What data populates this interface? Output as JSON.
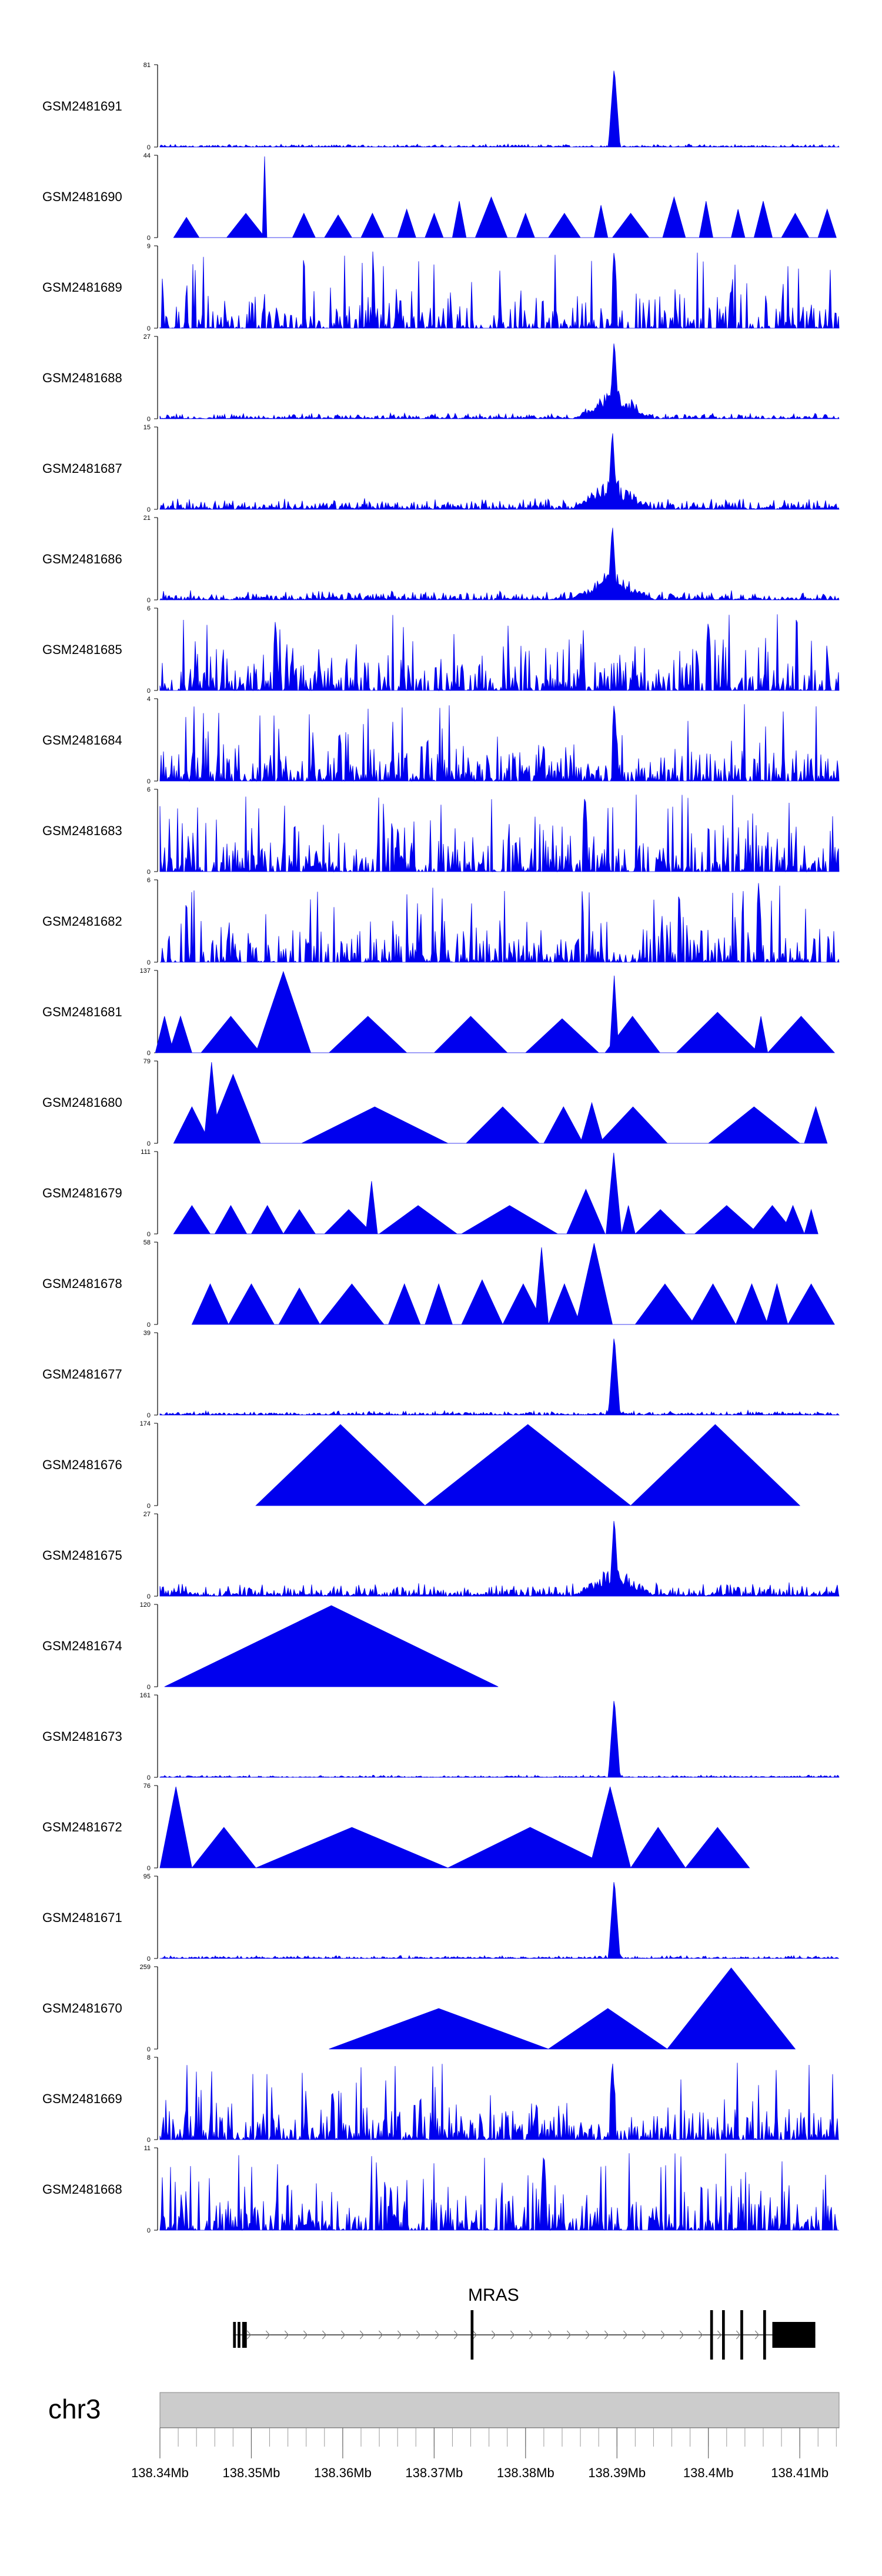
{
  "chart_data": {
    "type": "area",
    "title": "",
    "genomic_range": [
      138.34,
      138.4143
    ],
    "colors": {
      "signal": "#0000ee",
      "gene": "#000000",
      "ideogram": "#cccccc"
    },
    "tracks": [
      {
        "label": "GSM2481691",
        "ymin": "0",
        "ymax": "81",
        "profile": "peak",
        "peak_pos": 138.3897,
        "peak_frac": 1.0,
        "baseline": 0.04
      },
      {
        "label": "GSM2481690",
        "ymin": "0",
        "ymax": "44",
        "profile": "triangles",
        "regions": [
          [
            138.3415,
            138.3443,
            0.25
          ],
          [
            138.3443,
            138.3473,
            0.0
          ],
          [
            138.3473,
            138.3515,
            0.3
          ],
          [
            138.3512,
            138.3517,
            1.0
          ],
          [
            138.3545,
            138.357,
            0.3
          ],
          [
            138.358,
            138.361,
            0.28
          ],
          [
            138.362,
            138.3645,
            0.3
          ],
          [
            138.366,
            138.368,
            0.35
          ],
          [
            138.369,
            138.371,
            0.3
          ],
          [
            138.372,
            138.3735,
            0.45
          ],
          [
            138.3745,
            138.378,
            0.5
          ],
          [
            138.379,
            138.381,
            0.3
          ],
          [
            138.3825,
            138.386,
            0.3
          ],
          [
            138.3875,
            138.389,
            0.4
          ],
          [
            138.3895,
            138.3935,
            0.3
          ],
          [
            138.395,
            138.3975,
            0.5
          ],
          [
            138.399,
            138.4005,
            0.45
          ],
          [
            138.4025,
            138.404,
            0.35
          ],
          [
            138.405,
            138.407,
            0.45
          ],
          [
            138.408,
            138.411,
            0.3
          ],
          [
            138.412,
            138.414,
            0.35
          ]
        ]
      },
      {
        "label": "GSM2481689",
        "ymin": "0",
        "ymax": "9",
        "profile": "dense",
        "peak_pos": 138.3897,
        "peak_frac": 1.0,
        "base": 0.35
      },
      {
        "label": "GSM2481688",
        "ymin": "0",
        "ymax": "27",
        "profile": "cluster",
        "peak_pos": 138.3897,
        "peak_frac": 1.0,
        "baseline": 0.05
      },
      {
        "label": "GSM2481687",
        "ymin": "0",
        "ymax": "15",
        "profile": "cluster",
        "peak_pos": 138.3895,
        "peak_frac": 1.0,
        "baseline": 0.1
      },
      {
        "label": "GSM2481686",
        "ymin": "0",
        "ymax": "21",
        "profile": "cluster",
        "peak_pos": 138.3895,
        "peak_frac": 0.95,
        "baseline": 0.08
      },
      {
        "label": "GSM2481685",
        "ymin": "0",
        "ymax": "6",
        "profile": "dense",
        "peak_pos": 138.4,
        "peak_frac": 0.9,
        "base": 0.4
      },
      {
        "label": "GSM2481684",
        "ymin": "0",
        "ymax": "4",
        "profile": "dense",
        "peak_pos": 138.3897,
        "peak_frac": 1.0,
        "base": 0.35
      },
      {
        "label": "GSM2481683",
        "ymin": "0",
        "ymax": "6",
        "profile": "dense",
        "peak_pos": 138.3865,
        "peak_frac": 1.0,
        "base": 0.4
      },
      {
        "label": "GSM2481682",
        "ymin": "0",
        "ymax": "6",
        "profile": "dense",
        "peak_pos": 138.4055,
        "peak_frac": 1.0,
        "base": 0.35
      },
      {
        "label": "GSM2481681",
        "ymin": "0",
        "ymax": "137",
        "profile": "triangles",
        "regions": [
          [
            138.3395,
            138.3415,
            0.45
          ],
          [
            138.341,
            138.3435,
            0.45
          ],
          [
            138.3445,
            138.351,
            0.45
          ],
          [
            138.3505,
            138.3565,
            1.0
          ],
          [
            138.356,
            138.3585,
            0.0
          ],
          [
            138.3585,
            138.367,
            0.45
          ],
          [
            138.37,
            138.378,
            0.45
          ],
          [
            138.38,
            138.388,
            0.42
          ],
          [
            138.3887,
            138.3947,
            0.45
          ],
          [
            138.3892,
            138.3902,
            0.95
          ],
          [
            138.3965,
            138.4055,
            0.5
          ],
          [
            138.405,
            138.4065,
            0.45
          ],
          [
            138.4065,
            138.4138,
            0.45
          ]
        ]
      },
      {
        "label": "GSM2481680",
        "ymin": "0",
        "ymax": "79",
        "profile": "triangles",
        "regions": [
          [
            138.3415,
            138.3455,
            0.45
          ],
          [
            138.345,
            138.351,
            0.85
          ],
          [
            138.3448,
            138.3465,
            1.0
          ],
          [
            138.352,
            138.356,
            0.0
          ],
          [
            138.3555,
            138.3715,
            0.45
          ],
          [
            138.3735,
            138.3815,
            0.45
          ],
          [
            138.382,
            138.3863,
            0.45
          ],
          [
            138.386,
            138.3885,
            0.5
          ],
          [
            138.388,
            138.3955,
            0.45
          ],
          [
            138.4,
            138.41,
            0.45
          ],
          [
            138.4105,
            138.413,
            0.45
          ]
        ]
      },
      {
        "label": "GSM2481679",
        "ymin": "0",
        "ymax": "111",
        "profile": "triangles",
        "regions": [
          [
            138.3415,
            138.3455,
            0.35
          ],
          [
            138.346,
            138.3495,
            0.35
          ],
          [
            138.35,
            138.3535,
            0.35
          ],
          [
            138.3535,
            138.357,
            0.3
          ],
          [
            138.358,
            138.3633,
            0.3
          ],
          [
            138.3625,
            138.3638,
            0.65
          ],
          [
            138.364,
            138.3725,
            0.35
          ],
          [
            138.373,
            138.3835,
            0.35
          ],
          [
            138.3845,
            138.3887,
            0.55
          ],
          [
            138.3888,
            138.3905,
            1.0
          ],
          [
            138.3905,
            138.392,
            0.35
          ],
          [
            138.392,
            138.3975,
            0.3
          ],
          [
            138.3985,
            138.4055,
            0.35
          ],
          [
            138.4045,
            138.4095,
            0.35
          ],
          [
            138.408,
            138.4105,
            0.35
          ],
          [
            138.4105,
            138.412,
            0.3
          ]
        ]
      },
      {
        "label": "GSM2481678",
        "ymin": "0",
        "ymax": "58",
        "profile": "triangles",
        "regions": [
          [
            138.3435,
            138.3475,
            0.5
          ],
          [
            138.3475,
            138.3525,
            0.5
          ],
          [
            138.353,
            138.3575,
            0.45
          ],
          [
            138.3575,
            138.3645,
            0.5
          ],
          [
            138.365,
            138.3685,
            0.5
          ],
          [
            138.369,
            138.372,
            0.5
          ],
          [
            138.373,
            138.3775,
            0.55
          ],
          [
            138.3775,
            138.382,
            0.5
          ],
          [
            138.381,
            138.3825,
            0.95
          ],
          [
            138.3825,
            138.386,
            0.5
          ],
          [
            138.3855,
            138.3895,
            1.0
          ],
          [
            138.392,
            138.3985,
            0.5
          ],
          [
            138.398,
            138.403,
            0.5
          ],
          [
            138.403,
            138.4065,
            0.5
          ],
          [
            138.4063,
            138.4087,
            0.5
          ],
          [
            138.4087,
            138.4138,
            0.5
          ]
        ]
      },
      {
        "label": "GSM2481677",
        "ymin": "0",
        "ymax": "39",
        "profile": "peak",
        "peak_pos": 138.3897,
        "peak_frac": 1.0,
        "baseline": 0.06
      },
      {
        "label": "GSM2481676",
        "ymin": "0",
        "ymax": "174",
        "profile": "triangles",
        "regions": [
          [
            138.3505,
            138.369,
            1.0
          ],
          [
            138.369,
            138.3915,
            1.0
          ],
          [
            138.3915,
            138.41,
            1.0
          ]
        ]
      },
      {
        "label": "GSM2481675",
        "ymin": "0",
        "ymax": "27",
        "profile": "cluster",
        "peak_pos": 138.3897,
        "peak_frac": 1.0,
        "baseline": 0.12
      },
      {
        "label": "GSM2481674",
        "ymin": "0",
        "ymax": "120",
        "profile": "triangles",
        "regions": [
          [
            138.3405,
            138.377,
            1.0
          ]
        ]
      },
      {
        "label": "GSM2481673",
        "ymin": "0",
        "ymax": "161",
        "profile": "peak",
        "peak_pos": 138.3897,
        "peak_frac": 1.0,
        "baseline": 0.03
      },
      {
        "label": "GSM2481672",
        "ymin": "0",
        "ymax": "76",
        "profile": "triangles",
        "regions": [
          [
            138.34,
            138.3435,
            1.0
          ],
          [
            138.3435,
            138.3505,
            0.5
          ],
          [
            138.3505,
            138.3715,
            0.5
          ],
          [
            138.3715,
            138.3895,
            0.5
          ],
          [
            138.387,
            138.3915,
            1.0
          ],
          [
            138.3915,
            138.3975,
            0.5
          ],
          [
            138.3975,
            138.4045,
            0.5
          ]
        ]
      },
      {
        "label": "GSM2481671",
        "ymin": "0",
        "ymax": "95",
        "profile": "peak",
        "peak_pos": 138.3897,
        "peak_frac": 1.0,
        "baseline": 0.04
      },
      {
        "label": "GSM2481670",
        "ymin": "0",
        "ymax": "259",
        "profile": "triangles",
        "regions": [
          [
            138.3585,
            138.3825,
            0.5
          ],
          [
            138.3825,
            138.3955,
            0.5
          ],
          [
            138.3955,
            138.4095,
            1.0
          ]
        ]
      },
      {
        "label": "GSM2481669",
        "ymin": "0",
        "ymax": "8",
        "profile": "dense",
        "peak_pos": 138.3895,
        "peak_frac": 1.0,
        "base": 0.35
      },
      {
        "label": "GSM2481668",
        "ymin": "0",
        "ymax": "11",
        "profile": "dense",
        "peak_pos": 138.382,
        "peak_frac": 1.0,
        "base": 0.4
      }
    ],
    "gene": {
      "name": "MRAS",
      "strand": "+",
      "start": 138.348,
      "end": 138.4117,
      "exons": [
        [
          138.348,
          138.3483,
          "tall"
        ],
        [
          138.3485,
          138.3488,
          "tall"
        ],
        [
          138.349,
          138.3495,
          "tall"
        ],
        [
          138.374,
          138.3743,
          "line"
        ],
        [
          138.4002,
          138.4005,
          "line"
        ],
        [
          138.4015,
          138.4018,
          "line"
        ],
        [
          138.4035,
          138.4038,
          "line"
        ],
        [
          138.406,
          138.4063,
          "line"
        ],
        [
          138.407,
          138.4117,
          "box"
        ]
      ]
    },
    "chromosome": {
      "label": "chr3"
    },
    "x_axis": {
      "major_ticks": [
        {
          "pos": 138.34,
          "label": "138.34Mb"
        },
        {
          "pos": 138.35,
          "label": "138.35Mb"
        },
        {
          "pos": 138.36,
          "label": "138.36Mb"
        },
        {
          "pos": 138.37,
          "label": "138.37Mb"
        },
        {
          "pos": 138.38,
          "label": "138.38Mb"
        },
        {
          "pos": 138.39,
          "label": "138.39Mb"
        },
        {
          "pos": 138.4,
          "label": "138.4Mb"
        },
        {
          "pos": 138.41,
          "label": "138.41Mb"
        }
      ],
      "minor_step": 0.002
    }
  }
}
